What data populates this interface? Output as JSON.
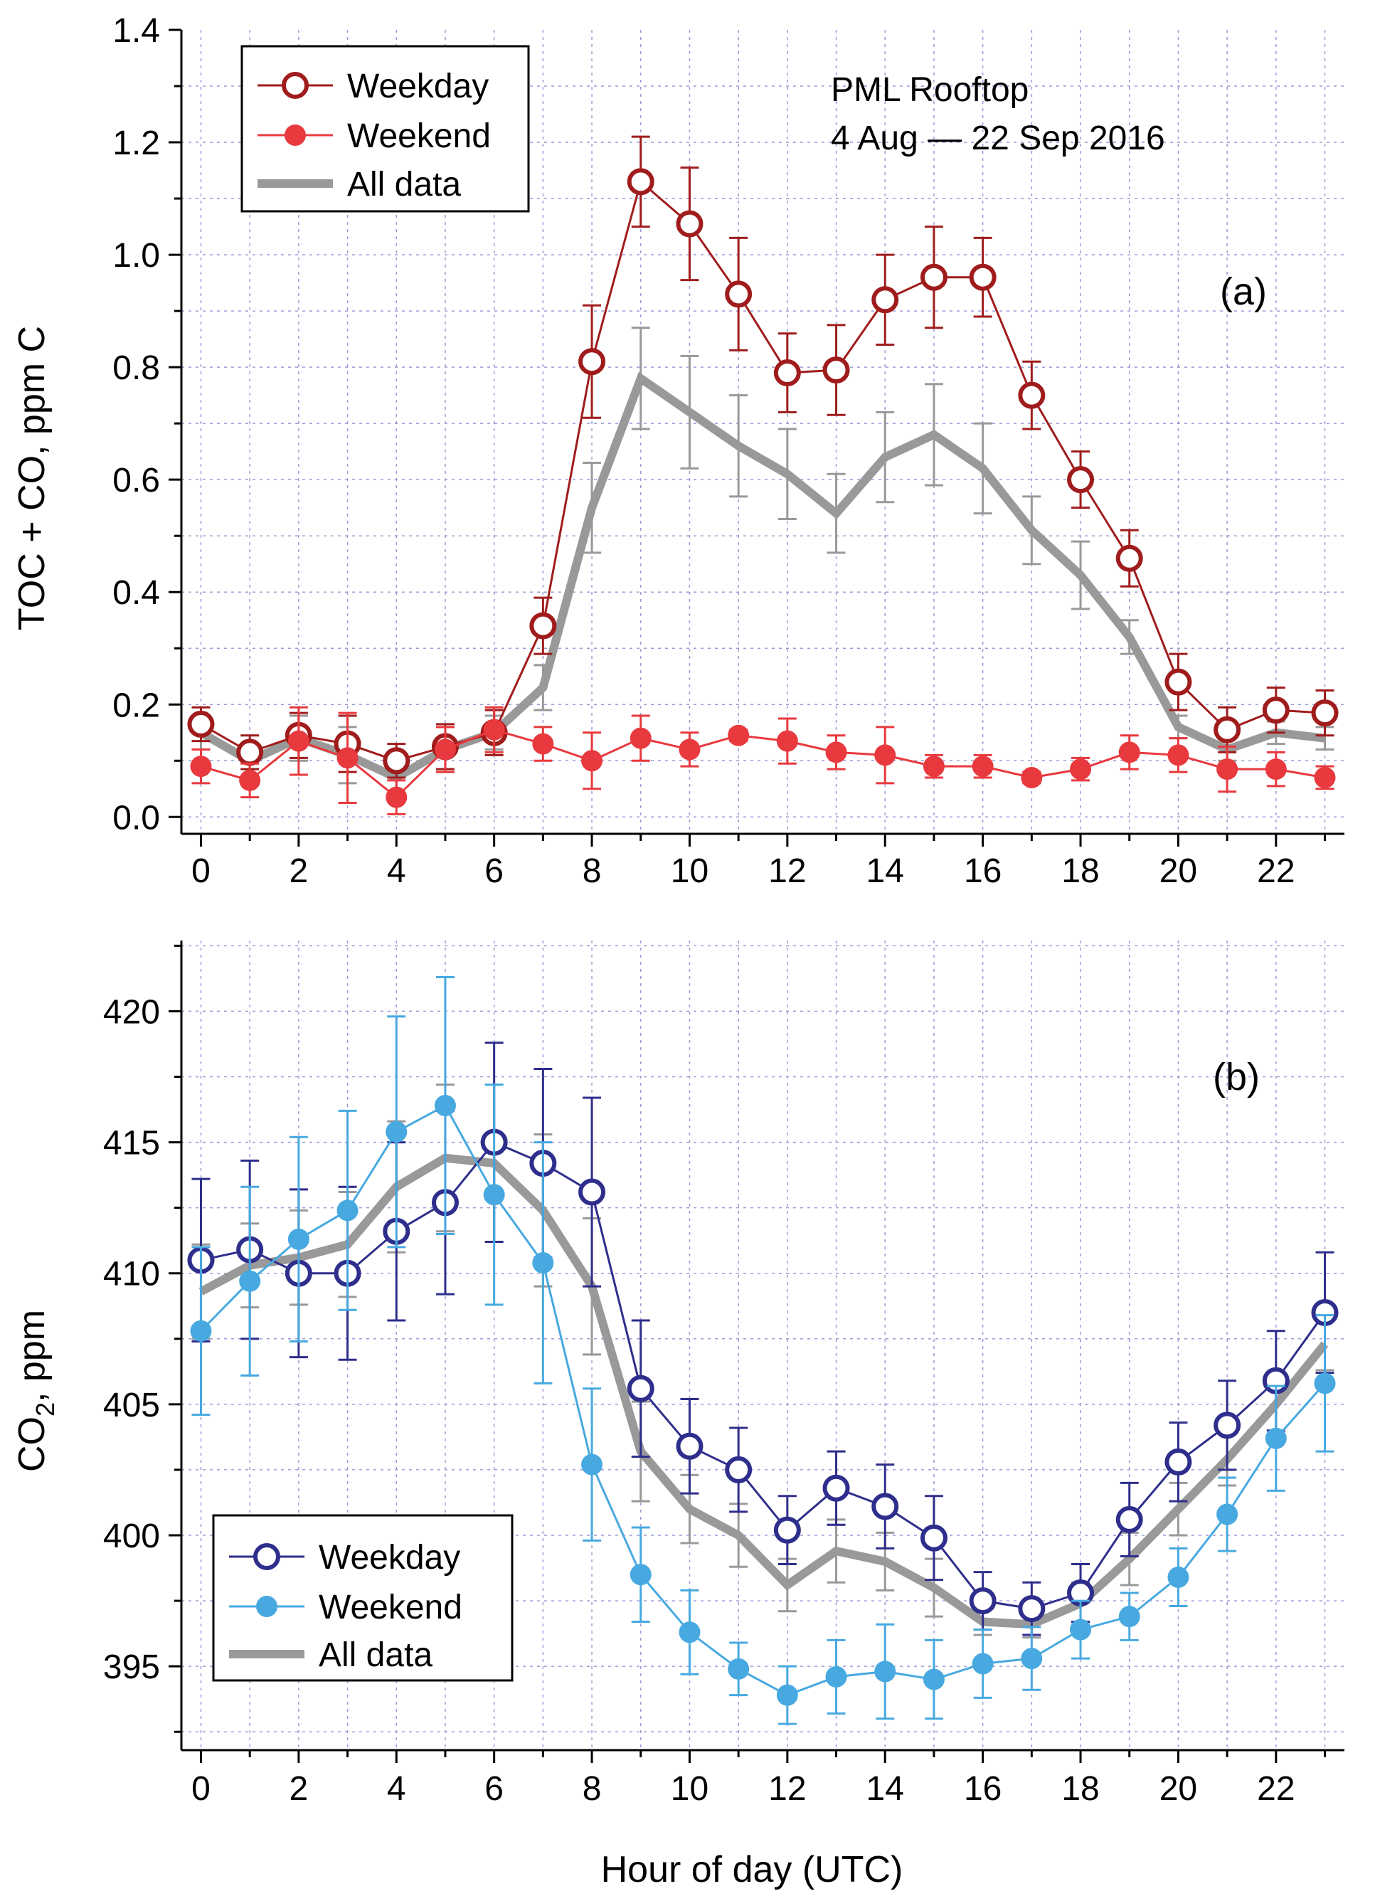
{
  "chart_data": [
    {
      "type": "line",
      "panel_label": "(a)",
      "annotation_lines": [
        "PML Rooftop",
        "4 Aug — 22 Sep  2016"
      ],
      "xlabel": "",
      "ylabel": "TOC + CO, ppm C",
      "xlim": [
        -0.4,
        23.4
      ],
      "ylim": [
        -0.03,
        1.4
      ],
      "xticks": [
        0,
        2,
        4,
        6,
        8,
        10,
        12,
        14,
        16,
        18,
        20,
        22
      ],
      "xtick_labels": [
        "0",
        "2",
        "4",
        "6",
        "8",
        "10",
        "12",
        "14",
        "16",
        "18",
        "20",
        "22"
      ],
      "yticks": [
        0,
        0.2,
        0.4,
        0.6,
        0.8,
        1.0,
        1.2,
        1.4
      ],
      "ytick_labels": [
        "0.0",
        "0.2",
        "0.4",
        "0.6",
        "0.8",
        "1.0",
        "1.2",
        "1.4"
      ],
      "legend_position": "top-left",
      "x": [
        0,
        1,
        2,
        3,
        4,
        5,
        6,
        7,
        8,
        9,
        10,
        11,
        12,
        13,
        14,
        15,
        16,
        17,
        18,
        19,
        20,
        21,
        22,
        23
      ],
      "series": [
        {
          "name": "All data",
          "style": "thick-line",
          "color": "#999999",
          "values": [
            0.15,
            0.1,
            0.14,
            0.11,
            0.07,
            0.12,
            0.15,
            0.23,
            0.55,
            0.78,
            0.72,
            0.66,
            0.61,
            0.54,
            0.64,
            0.68,
            0.62,
            0.51,
            0.43,
            0.32,
            0.16,
            0.12,
            0.15,
            0.14
          ],
          "errors": [
            0.03,
            0.03,
            0.04,
            0.05,
            0.03,
            0.04,
            0.03,
            0.04,
            0.08,
            0.09,
            0.1,
            0.09,
            0.08,
            0.07,
            0.08,
            0.09,
            0.08,
            0.06,
            0.06,
            0.03,
            0.02,
            0.02,
            0.02,
            0.02
          ]
        },
        {
          "name": "Weekday",
          "style": "open-circle",
          "color": "#a01c1c",
          "values": [
            0.165,
            0.115,
            0.145,
            0.13,
            0.1,
            0.125,
            0.15,
            0.34,
            0.81,
            1.13,
            1.055,
            0.93,
            0.79,
            0.795,
            0.92,
            0.96,
            0.96,
            0.75,
            0.6,
            0.46,
            0.24,
            0.155,
            0.19,
            0.185
          ],
          "errors": [
            0.03,
            0.03,
            0.04,
            0.05,
            0.03,
            0.04,
            0.04,
            0.05,
            0.1,
            0.08,
            0.1,
            0.1,
            0.07,
            0.08,
            0.08,
            0.09,
            0.07,
            0.06,
            0.05,
            0.05,
            0.05,
            0.04,
            0.04,
            0.04
          ]
        },
        {
          "name": "Weekend",
          "style": "filled-circle",
          "color": "#e8393e",
          "values": [
            0.09,
            0.065,
            0.135,
            0.105,
            0.035,
            0.12,
            0.155,
            0.13,
            0.1,
            0.14,
            0.12,
            0.145,
            0.135,
            0.115,
            0.11,
            0.09,
            0.09,
            0.07,
            0.085,
            0.115,
            0.11,
            0.085,
            0.085,
            0.07
          ],
          "errors": [
            0.03,
            0.03,
            0.06,
            0.08,
            0.03,
            0.04,
            0.04,
            0.03,
            0.05,
            0.04,
            0.03,
            0.01,
            0.04,
            0.03,
            0.05,
            0.02,
            0.02,
            0.01,
            0.02,
            0.03,
            0.03,
            0.04,
            0.03,
            0.02
          ]
        }
      ],
      "legend": [
        {
          "name": "Weekday",
          "style": "open-circle",
          "color": "#a01c1c"
        },
        {
          "name": "Weekend",
          "style": "filled-circle",
          "color": "#e8393e"
        },
        {
          "name": "All data",
          "style": "thick-line",
          "color": "#999999"
        }
      ]
    },
    {
      "type": "line",
      "panel_label": "(b)",
      "xlabel": "Hour of day (UTC)",
      "ylabel_main": "CO",
      "ylabel_sub": "2",
      "ylabel_tail": ", ppm",
      "xlim": [
        -0.4,
        23.4
      ],
      "ylim": [
        391.8,
        422.7
      ],
      "xticks": [
        0,
        2,
        4,
        6,
        8,
        10,
        12,
        14,
        16,
        18,
        20,
        22
      ],
      "xtick_labels": [
        "0",
        "2",
        "4",
        "6",
        "8",
        "10",
        "12",
        "14",
        "16",
        "18",
        "20",
        "22"
      ],
      "yticks": [
        395,
        400,
        405,
        410,
        415,
        420
      ],
      "ytick_labels": [
        "395",
        "400",
        "405",
        "410",
        "415",
        "420"
      ],
      "legend_position": "bottom-left",
      "x": [
        0,
        1,
        2,
        3,
        4,
        5,
        6,
        7,
        8,
        9,
        10,
        11,
        12,
        13,
        14,
        15,
        16,
        17,
        18,
        19,
        20,
        21,
        22,
        23
      ],
      "series": [
        {
          "name": "All data",
          "style": "thick-line",
          "color": "#999999",
          "values": [
            409.3,
            410.3,
            410.6,
            411.1,
            413.3,
            414.4,
            414.2,
            412.4,
            409.5,
            403.2,
            401.0,
            400.0,
            398.1,
            399.4,
            399.0,
            398.0,
            396.7,
            396.6,
            397.4,
            399.1,
            401.0,
            402.9,
            405.0,
            407.3
          ],
          "errors": [
            1.8,
            1.6,
            1.8,
            2.0,
            2.5,
            2.8,
            3.0,
            2.9,
            2.6,
            1.9,
            1.3,
            1.2,
            1.0,
            1.2,
            1.1,
            1.1,
            0.5,
            0.5,
            0.8,
            1.0,
            1.0,
            1.0,
            1.0,
            1.0
          ]
        },
        {
          "name": "Weekday",
          "style": "open-circle",
          "color": "#2e2e8c",
          "values": [
            410.5,
            410.9,
            410.0,
            410.0,
            411.6,
            412.7,
            415.0,
            414.2,
            413.1,
            405.6,
            403.4,
            402.5,
            400.2,
            401.8,
            401.1,
            399.9,
            397.5,
            397.2,
            397.8,
            400.6,
            402.8,
            404.2,
            405.9,
            408.5
          ],
          "errors": [
            3.1,
            3.4,
            3.2,
            3.3,
            3.4,
            3.5,
            3.8,
            3.6,
            3.6,
            2.6,
            1.8,
            1.6,
            1.3,
            1.4,
            1.6,
            1.6,
            1.1,
            1.0,
            1.1,
            1.4,
            1.5,
            1.7,
            1.9,
            2.3
          ]
        },
        {
          "name": "Weekend",
          "style": "filled-circle",
          "color": "#47a9e0",
          "values": [
            407.8,
            409.7,
            411.3,
            412.4,
            415.4,
            416.4,
            413.0,
            410.4,
            402.7,
            398.5,
            396.3,
            394.9,
            393.9,
            394.6,
            394.8,
            394.5,
            395.1,
            395.3,
            396.4,
            396.9,
            398.4,
            400.8,
            403.7,
            405.8
          ],
          "errors": [
            3.2,
            3.6,
            3.9,
            3.8,
            4.4,
            4.9,
            4.2,
            4.6,
            2.9,
            1.8,
            1.6,
            1.0,
            1.1,
            1.4,
            1.8,
            1.5,
            1.3,
            1.2,
            1.1,
            0.9,
            1.1,
            1.4,
            2.0,
            2.6
          ]
        }
      ],
      "legend": [
        {
          "name": "Weekday",
          "style": "open-circle",
          "color": "#2e2e8c"
        },
        {
          "name": "Weekend",
          "style": "filled-circle",
          "color": "#47a9e0"
        },
        {
          "name": "All data",
          "style": "thick-line",
          "color": "#999999"
        }
      ]
    }
  ]
}
